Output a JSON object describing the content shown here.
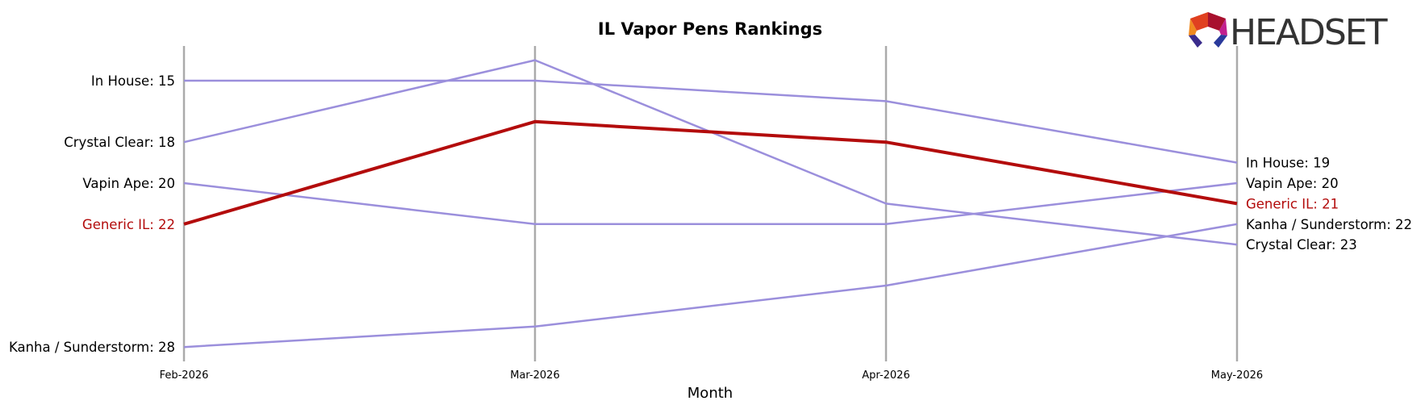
{
  "chart_data": {
    "type": "line",
    "title": "IL Vapor Pens Rankings",
    "xlabel": "Month",
    "ylabel": "",
    "categories": [
      "Feb-2026",
      "Mar-2026",
      "Apr-2026",
      "May-2026"
    ],
    "ylim": [
      29,
      13.3
    ],
    "y_inverted": true,
    "grid": "vertical lines at each month",
    "series": [
      {
        "name": "In House",
        "values": [
          15,
          15,
          16,
          19
        ],
        "color": "#9b8fdc",
        "highlight": false
      },
      {
        "name": "Crystal Clear",
        "values": [
          18,
          14,
          21,
          23
        ],
        "color": "#9b8fdc",
        "highlight": false
      },
      {
        "name": "Vapin Ape",
        "values": [
          20,
          22,
          22,
          20
        ],
        "color": "#9b8fdc",
        "highlight": false
      },
      {
        "name": "Kanha / Sunderstorm",
        "values": [
          28,
          27,
          25,
          22
        ],
        "color": "#9b8fdc",
        "highlight": false
      },
      {
        "name": "Generic IL",
        "values": [
          22,
          17,
          18,
          21
        ],
        "color": "#b30c0c",
        "highlight": true
      }
    ],
    "start_labels": [
      {
        "series": "In House",
        "text": "In House: 15"
      },
      {
        "series": "Crystal Clear",
        "text": "Crystal Clear: 18"
      },
      {
        "series": "Vapin Ape",
        "text": "Vapin Ape: 20"
      },
      {
        "series": "Generic IL",
        "text": "Generic IL: 22"
      },
      {
        "series": "Kanha / Sunderstorm",
        "text": "Kanha / Sunderstorm: 28"
      }
    ],
    "end_labels": [
      {
        "series": "In House",
        "text": "In House: 19"
      },
      {
        "series": "Vapin Ape",
        "text": "Vapin Ape: 20"
      },
      {
        "series": "Generic IL",
        "text": "Generic IL: 21"
      },
      {
        "series": "Kanha / Sunderstorm",
        "text": "Kanha / Sunderstorm: 22"
      },
      {
        "series": "Crystal Clear",
        "text": "Crystal Clear: 23"
      }
    ]
  },
  "logo": {
    "text": "HEADSET"
  }
}
